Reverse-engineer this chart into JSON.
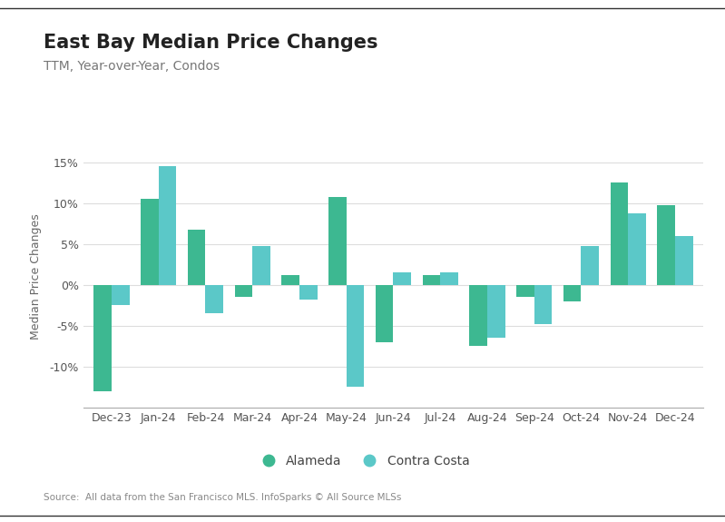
{
  "title": "East Bay Median Price Changes",
  "subtitle": "TTM, Year-over-Year, Condos",
  "ylabel": "Median Price Changes",
  "source": "Source:  All data from the San Francisco MLS. InfoSparks © All Source MLSs",
  "categories": [
    "Dec-23",
    "Jan-24",
    "Feb-24",
    "Mar-24",
    "Apr-24",
    "May-24",
    "Jun-24",
    "Jul-24",
    "Aug-24",
    "Sep-24",
    "Oct-24",
    "Nov-24",
    "Dec-24"
  ],
  "alameda": [
    -13.0,
    10.5,
    6.8,
    -1.5,
    1.2,
    10.8,
    -7.0,
    1.2,
    -7.5,
    -1.5,
    -2.0,
    12.5,
    9.8
  ],
  "contra_costa": [
    -2.5,
    14.5,
    -3.5,
    4.8,
    -1.8,
    -12.5,
    1.5,
    1.5,
    -6.5,
    -4.8,
    4.8,
    8.8,
    6.0
  ],
  "alameda_color": "#3db891",
  "contra_costa_color": "#5bc8c8",
  "background_color": "#ffffff",
  "grid_color": "#dddddd",
  "border_color": "#333333",
  "ylim": [
    -15,
    17
  ],
  "yticks": [
    -10,
    -5,
    0,
    5,
    10,
    15
  ],
  "bar_width": 0.38,
  "title_fontsize": 15,
  "subtitle_fontsize": 10,
  "axis_fontsize": 9,
  "legend_fontsize": 10,
  "source_fontsize": 7.5
}
